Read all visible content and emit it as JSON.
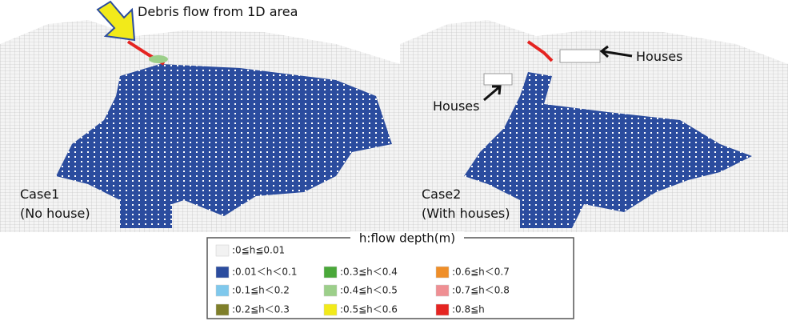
{
  "panels": [
    {
      "case": "Case1",
      "description": "(No house)",
      "annotation": "Debris flow from 1D area"
    },
    {
      "case": "Case2",
      "description": "(With houses)",
      "annotations": [
        "Houses",
        "Houses"
      ]
    }
  ],
  "legend": {
    "title": "h:flow depth(m)",
    "items": [
      {
        "label": ":0≦h≦0.01",
        "color": "#f2f2f2"
      },
      {
        "label": ":0.01＜h＜0.1",
        "color": "#2b4c9e"
      },
      {
        "label": ":0.1≦h＜0.2",
        "color": "#7fc8ec"
      },
      {
        "label": ":0.2≦h＜0.3",
        "color": "#7f7f2a"
      },
      {
        "label": ":0.3≦h＜0.4",
        "color": "#4aa83a"
      },
      {
        "label": ":0.4≦h＜0.5",
        "color": "#9ccf8a"
      },
      {
        "label": ":0.5≦h＜0.6",
        "color": "#f2ea1a"
      },
      {
        "label": ":0.6≦h＜0.7",
        "color": "#ef8e28"
      },
      {
        "label": ":0.7≦h＜0.8",
        "color": "#ef8f93"
      },
      {
        "label": ":0.8≦h",
        "color": "#e52421"
      }
    ]
  }
}
